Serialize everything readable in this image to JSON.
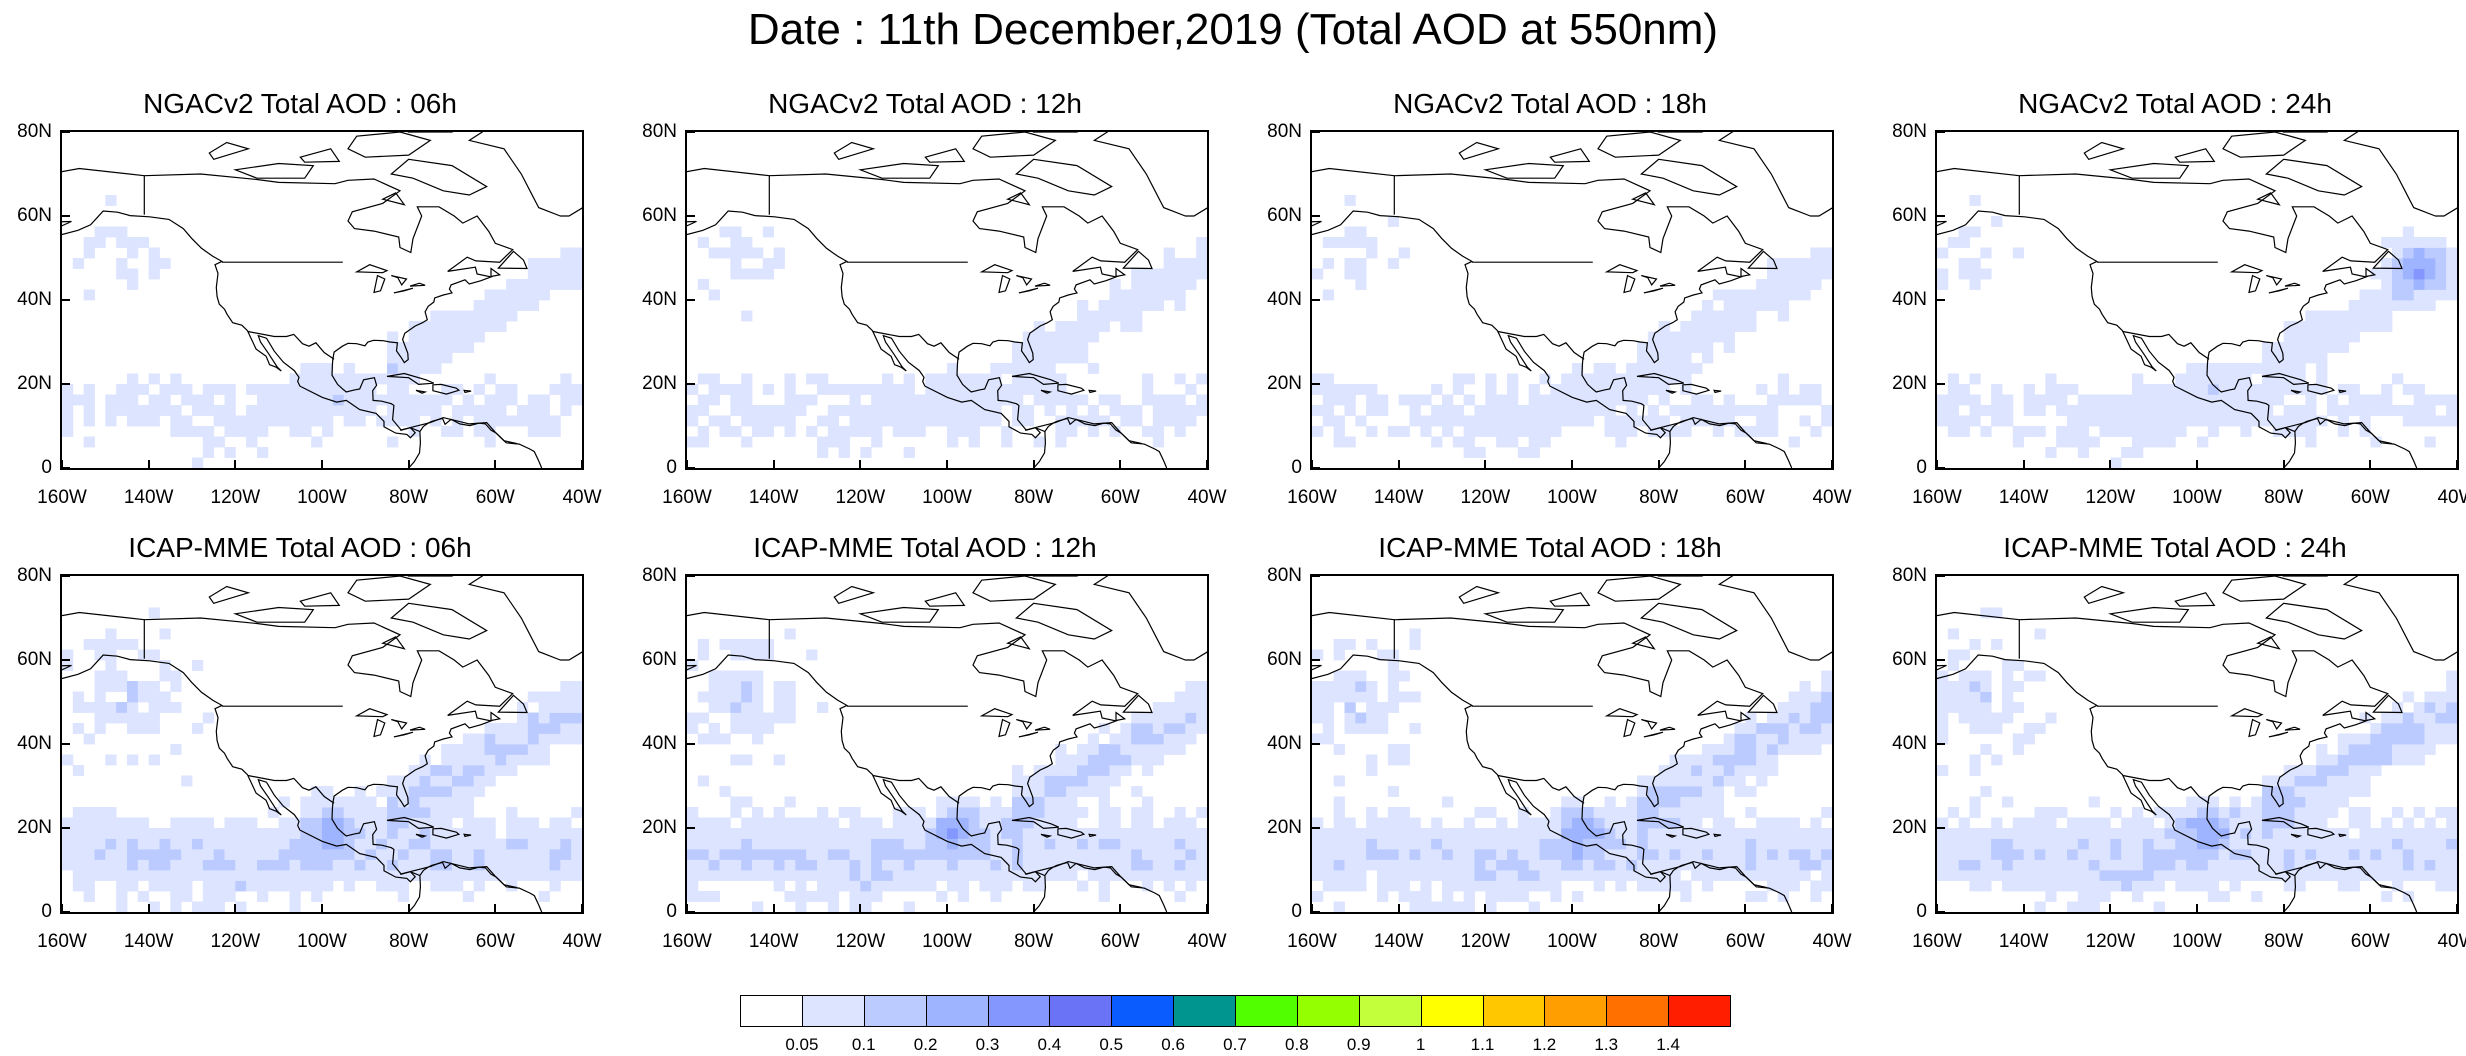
{
  "title": "Date : 11th December,2019 (Total AOD at 550nm)",
  "y_ticks": [
    "80N",
    "60N",
    "40N",
    "20N",
    "0"
  ],
  "x_ticks": [
    "160W",
    "140W",
    "120W",
    "100W",
    "80W",
    "60W",
    "40W"
  ],
  "map_extent": {
    "lon_range": [
      -160,
      -40
    ],
    "lat_range": [
      0,
      80
    ]
  },
  "panels": [
    {
      "title": "NGACv2 Total AOD : 06h",
      "model": "NGACv2",
      "forecast_hour": "06h"
    },
    {
      "title": "NGACv2 Total AOD : 12h",
      "model": "NGACv2",
      "forecast_hour": "12h"
    },
    {
      "title": "NGACv2 Total AOD : 18h",
      "model": "NGACv2",
      "forecast_hour": "18h"
    },
    {
      "title": "NGACv2 Total AOD : 24h",
      "model": "NGACv2",
      "forecast_hour": "24h"
    },
    {
      "title": "ICAP-MME Total AOD : 06h",
      "model": "ICAP-MME",
      "forecast_hour": "06h"
    },
    {
      "title": "ICAP-MME Total AOD : 12h",
      "model": "ICAP-MME",
      "forecast_hour": "12h"
    },
    {
      "title": "ICAP-MME Total AOD : 18h",
      "model": "ICAP-MME",
      "forecast_hour": "18h"
    },
    {
      "title": "ICAP-MME Total AOD : 24h",
      "model": "ICAP-MME",
      "forecast_hour": "24h"
    }
  ],
  "colorbar": {
    "labels": [
      "0.05",
      "0.1",
      "0.2",
      "0.3",
      "0.4",
      "0.5",
      "0.6",
      "0.7",
      "0.8",
      "0.9",
      "1",
      "1.1",
      "1.2",
      "1.3",
      "1.4"
    ],
    "colors": [
      "#ffffff",
      "#dce4ff",
      "#bccbff",
      "#9fb4ff",
      "#8497ff",
      "#6a72f5",
      "#0a5cff",
      "#00968f",
      "#52ff00",
      "#94ff00",
      "#c3ff3b",
      "#ffff00",
      "#ffc700",
      "#ff9e00",
      "#ff7000",
      "#ff1e00"
    ]
  }
}
